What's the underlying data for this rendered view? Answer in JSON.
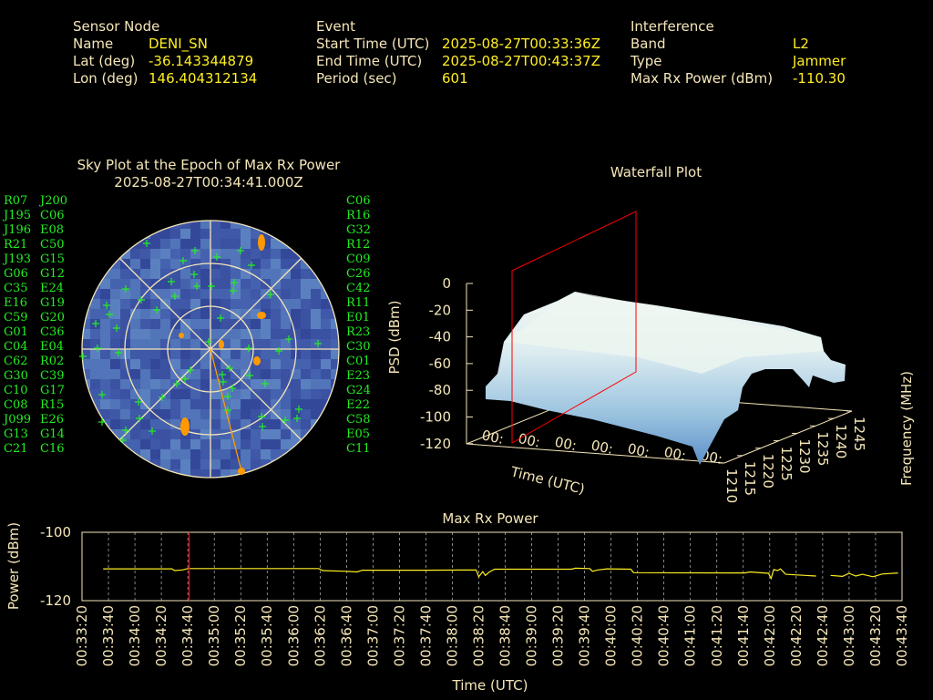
{
  "header": {
    "sensor": {
      "title": "Sensor Node",
      "name_label": "Name",
      "name": "DENI_SN",
      "lat_label": "Lat (deg)",
      "lat": "-36.143344879",
      "lon_label": "Lon (deg)",
      "lon": "146.404312134"
    },
    "event": {
      "title": "Event",
      "start_label": "Start Time (UTC)",
      "start": "2025-08-27T00:33:36Z",
      "end_label": "End Time (UTC)",
      "end": "2025-08-27T00:43:37Z",
      "period_label": "Period (sec)",
      "period": "601"
    },
    "interference": {
      "title": "Interference",
      "band_label": "Band",
      "band": "L2",
      "type_label": "Type",
      "type": "Jammer",
      "power_label": "Max Rx Power (dBm)",
      "power": "-110.30"
    }
  },
  "colors": {
    "label": "#f5e6b8",
    "value": "#ffee22",
    "satellite": "#22ee22",
    "jammer_track": "#ff9900",
    "marker": "#ff0000",
    "sky_background": "#3b52a3"
  },
  "chart_data": [
    {
      "type": "polar-scatter",
      "title": "Sky Plot at the Epoch of Max Rx Power",
      "subtitle": "2025-08-27T00:34:41.000Z",
      "elevation_rings": [
        0,
        30,
        60
      ],
      "satellites": [
        "R07",
        "J195",
        "J196",
        "R21",
        "J193",
        "G06",
        "C35",
        "E16",
        "C59",
        "G01",
        "C04",
        "C62",
        "G30",
        "C10",
        "C08",
        "J099",
        "G13",
        "C21",
        "J200",
        "C06",
        "E08",
        "C50",
        "G15",
        "G12",
        "E24",
        "G19",
        "G20",
        "C36",
        "E04",
        "R02",
        "C39",
        "G17",
        "R15",
        "E26",
        "G14",
        "C16",
        "C06",
        "R16",
        "G32",
        "R12",
        "C09",
        "C26",
        "C42",
        "R11",
        "E01",
        "R23",
        "C30",
        "C01",
        "E23",
        "G24",
        "E22",
        "C58",
        "E05",
        "C11"
      ]
    },
    {
      "type": "surface",
      "title": "Waterfall Plot",
      "xlabel": "Time (UTC)",
      "ylabel": "Frequency (MHz)",
      "zlabel": "PSD (dBm)",
      "zticks": [
        "0",
        "-20",
        "-40",
        "-60",
        "-80",
        "-100",
        "-120"
      ],
      "yticks": [
        "1210",
        "1215",
        "1220",
        "1225",
        "1230",
        "1235",
        "1240",
        "1245"
      ],
      "zlim": [
        -120,
        0
      ],
      "ylim": [
        1210,
        1245
      ]
    },
    {
      "type": "line",
      "title": "Max Rx Power",
      "xlabel": "Time (UTC)",
      "ylabel": "Power (dBm)",
      "xlim": [
        "00:33:20",
        "00:43:40"
      ],
      "ylim": [
        -120,
        -100
      ],
      "yticks": [
        "-100",
        "-120"
      ],
      "grid": "vertical dashed",
      "epoch_marker": "00:34:41",
      "points": [
        [
          "00:33:36",
          -110.7
        ],
        [
          "00:34:28",
          -110.7
        ],
        [
          "00:34:30",
          -111.2
        ],
        [
          "00:34:36",
          -111.0
        ],
        [
          "00:34:40",
          -110.6
        ],
        [
          "00:36:19",
          -110.6
        ],
        [
          "00:36:22",
          -111.2
        ],
        [
          "00:36:40",
          -111.4
        ],
        [
          "00:36:48",
          -111.6
        ],
        [
          "00:36:52",
          -111.1
        ],
        [
          "00:37:40",
          -111.1
        ],
        [
          "00:38:18",
          -111.0
        ],
        [
          "00:38:20",
          -113.0
        ],
        [
          "00:38:23",
          -111.5
        ],
        [
          "00:38:25",
          -112.6
        ],
        [
          "00:38:28",
          -111.6
        ],
        [
          "00:38:32",
          -110.8
        ],
        [
          "00:39:30",
          -110.8
        ],
        [
          "00:39:33",
          -110.5
        ],
        [
          "00:39:44",
          -110.6
        ],
        [
          "00:39:46",
          -111.4
        ],
        [
          "00:39:50",
          -111.0
        ],
        [
          "00:39:57",
          -110.7
        ],
        [
          "00:40:15",
          -110.8
        ],
        [
          "00:40:17",
          -111.8
        ],
        [
          "00:41:41",
          -111.9
        ],
        [
          "00:41:45",
          -111.6
        ],
        [
          "00:41:59",
          -112.0
        ],
        [
          "00:42:01",
          -113.5
        ],
        [
          "00:42:03",
          -110.9
        ],
        [
          "00:42:06",
          -111.2
        ],
        [
          "00:42:08",
          -110.7
        ],
        [
          "00:42:12",
          -112.3
        ],
        [
          "00:42:35",
          -112.8
        ],
        null,
        [
          "00:42:46",
          -112.6
        ],
        [
          "00:42:55",
          -112.9
        ],
        [
          "00:43:00",
          -112.0
        ],
        [
          "00:43:05",
          -112.8
        ],
        [
          "00:43:10",
          -112.3
        ],
        [
          "00:43:18",
          -113.0
        ],
        [
          "00:43:25",
          -112.2
        ],
        [
          "00:43:37",
          -111.9
        ]
      ]
    }
  ]
}
